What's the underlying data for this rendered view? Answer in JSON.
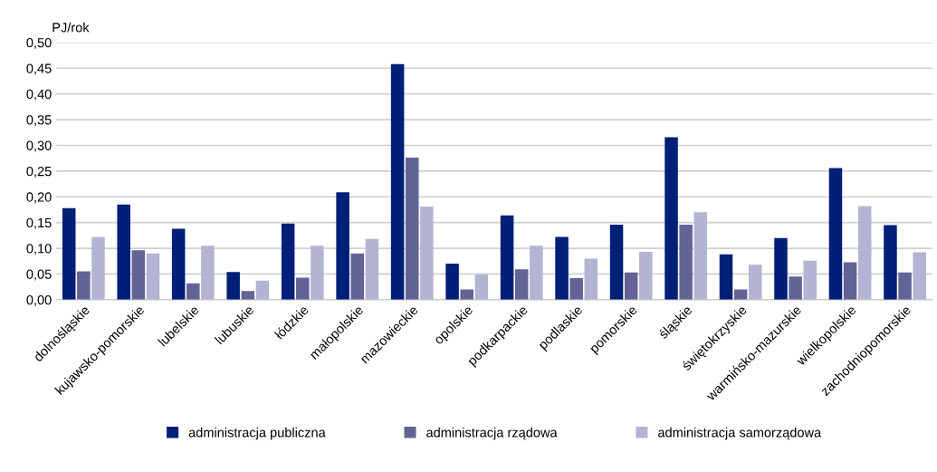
{
  "chart_data": {
    "type": "bar",
    "ylabel": "PJ/rok",
    "categories": [
      "dolnośląskie",
      "kujawsko-pomorskie",
      "lubelskie",
      "lubuskie",
      "łódzkie",
      "małopolskie",
      "mazowieckie",
      "opolskie",
      "podkarpackie",
      "podlaskie",
      "pomorskie",
      "śląskie",
      "świętokrzyskie",
      "warmińsko-mazurskie",
      "wielkopolskie",
      "zachodniopomorskie"
    ],
    "series": [
      {
        "name": "administracja publiczna",
        "color": "#001f77",
        "values": [
          0.178,
          0.185,
          0.138,
          0.054,
          0.148,
          0.209,
          0.458,
          0.07,
          0.164,
          0.122,
          0.146,
          0.316,
          0.088,
          0.12,
          0.256,
          0.145
        ]
      },
      {
        "name": "administracja rządowa",
        "color": "#636396",
        "values": [
          0.055,
          0.096,
          0.032,
          0.017,
          0.043,
          0.09,
          0.276,
          0.02,
          0.059,
          0.042,
          0.053,
          0.146,
          0.02,
          0.045,
          0.073,
          0.053
        ]
      },
      {
        "name": "administracja samorządowa",
        "color": "#b3b3d3",
        "values": [
          0.122,
          0.09,
          0.105,
          0.037,
          0.105,
          0.118,
          0.181,
          0.049,
          0.105,
          0.08,
          0.093,
          0.17,
          0.068,
          0.076,
          0.182,
          0.092
        ]
      }
    ],
    "ylim": [
      0,
      0.5
    ],
    "yticks": [
      {
        "value": 0,
        "label": "0,00"
      },
      {
        "value": 0.05,
        "label": "0,05"
      },
      {
        "value": 0.1,
        "label": "0,10"
      },
      {
        "value": 0.15,
        "label": "0,15"
      },
      {
        "value": 0.2,
        "label": "0,20"
      },
      {
        "value": 0.25,
        "label": "0,25"
      },
      {
        "value": 0.3,
        "label": "0,30"
      },
      {
        "value": 0.35,
        "label": "0,35"
      },
      {
        "value": 0.4,
        "label": "0,40"
      },
      {
        "value": 0.45,
        "label": "0,45"
      },
      {
        "value": 0.5,
        "label": "0,50"
      }
    ],
    "grid": "y",
    "legend": "bottom"
  }
}
